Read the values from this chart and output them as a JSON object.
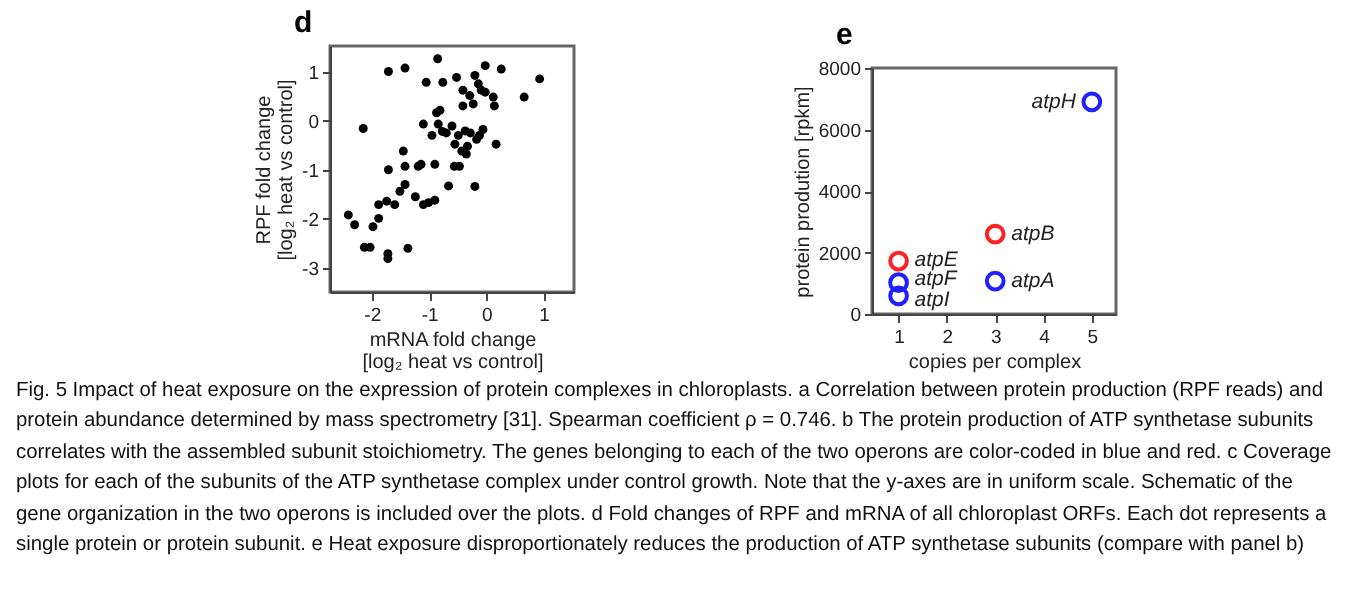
{
  "chart_data": [
    {
      "type": "scatter",
      "title": "d",
      "xlabel": "mRNA fold change\n[log₂ heat vs control]",
      "ylabel": "RPF fold change\n[log₂ heat vs control]",
      "marker": "circle",
      "color": "#000000",
      "x": [
        -2.41,
        -2.3,
        -2.15,
        -2.13,
        -2.03,
        -1.98,
        -1.88,
        -1.88,
        -1.74,
        -1.72,
        -1.72,
        -1.71,
        -1.71,
        -1.6,
        -1.51,
        -1.45,
        -1.42,
        -1.42,
        -1.42,
        -1.37,
        -1.24,
        -1.19,
        -1.14,
        -1.1,
        -1.1,
        -1.05,
        -1.01,
        -0.95,
        -0.9,
        -0.9,
        -0.87,
        -0.85,
        -0.84,
        -0.81,
        -0.77,
        -0.76,
        -0.7,
        -0.66,
        -0.56,
        -0.55,
        -0.52,
        -0.49,
        -0.47,
        -0.43,
        -0.41,
        -0.41,
        -0.37,
        -0.33,
        -0.29,
        -0.28,
        -0.23,
        -0.2,
        -0.2,
        -0.17,
        -0.14,
        -0.12,
        -0.09,
        -0.06,
        -0.02,
        -0.02,
        0.12,
        0.14,
        0.17,
        0.26,
        0.66,
        0.93,
        -0.6,
        -0.35
      ],
      "values": [
        -1.92,
        -2.12,
        -0.16,
        -2.58,
        -2.58,
        -2.16,
        -1.99,
        -1.71,
        -1.64,
        -2.81,
        -2.71,
        1.0,
        -1.0,
        -1.71,
        -1.44,
        -0.62,
        1.07,
        -0.93,
        -1.3,
        -2.6,
        -1.55,
        -0.93,
        -0.89,
        -1.71,
        -0.07,
        0.78,
        -1.67,
        -0.3,
        -0.89,
        -1.62,
        0.16,
        1.26,
        -0.07,
        0.21,
        -0.22,
        0.78,
        -0.25,
        -1.33,
        -0.93,
        -0.48,
        0.88,
        -0.3,
        -0.93,
        -0.62,
        0.3,
        0.62,
        -0.21,
        -0.52,
        0.51,
        -0.25,
        0.34,
        0.92,
        -1.34,
        -0.38,
        0.75,
        -0.3,
        0.62,
        -0.18,
        1.12,
        0.58,
        0.48,
        0.3,
        -0.48,
        1.05,
        0.48,
        0.85,
        -0.11,
        -0.68
      ],
      "xlim": [
        -2.73,
        1.53
      ],
      "ylim": [
        -3.49,
        1.52
      ],
      "xticks": [
        -2,
        -1,
        0,
        1
      ],
      "yticks": [
        -3,
        -2,
        -1,
        0,
        1
      ],
      "annotations": [
        "Fig. 5 Impact of heat exposure on the expression of protein complexes in chloroplasts. a Correlation between protein production (RPF reads) and protein abundance determined by mass spectrometry [31]. Spearman coefficient ρ = 0.746. b The protein production of ATP synthetase subunits correlates with the assembled subunit stoichiometry. The genes belonging to each of the two operons are color-coded in blue and red. c Coverage plots for each of the subunits of the ATP synthetase complex under control growth. Note that the y-axes are in uniform scale. Schematic of the gene organization in the two operons is included over the plots. d Fold changes of RPF and mRNA of all chloroplast ORFs. Each dot represents a single protein or protein subunit. e Heat exposure disproportionately reduces the production of ATP synthetase subunits (compare with panel b)"
      ]
    },
    {
      "type": "scatter",
      "title": "e",
      "xlabel": "copies per complex",
      "ylabel": "protein prodution [rpkm]",
      "marker": "circle",
      "series": [
        {
          "color": "#ff2020",
          "x": [
            1,
            3
          ],
          "values": [
            1720,
            2600
          ]
        },
        {
          "color": "#2020ff",
          "x": [
            1,
            1,
            3,
            5
          ],
          "values": [
            1020,
            590,
            1070,
            6900
          ]
        }
      ],
      "xlim": [
        0.45,
        5.5
      ],
      "ylim": [
        0,
        8000
      ],
      "xticks": [
        1,
        2,
        3,
        4,
        5
      ],
      "yticks": [
        0,
        2000,
        4000,
        6000,
        8000
      ],
      "annotations": [
        {
          "text": "atpE",
          "x": 1,
          "y": 1750
        },
        {
          "text": "atpF",
          "x": 1,
          "y": 1150
        },
        {
          "text": "atpI",
          "x": 1,
          "y": 450
        },
        {
          "text": "atpB",
          "x": 3,
          "y": 2600
        },
        {
          "text": "atpA",
          "x": 3,
          "y": 1070
        },
        {
          "text": "atpH",
          "x": 5,
          "y": 6900
        }
      ]
    }
  ]
}
